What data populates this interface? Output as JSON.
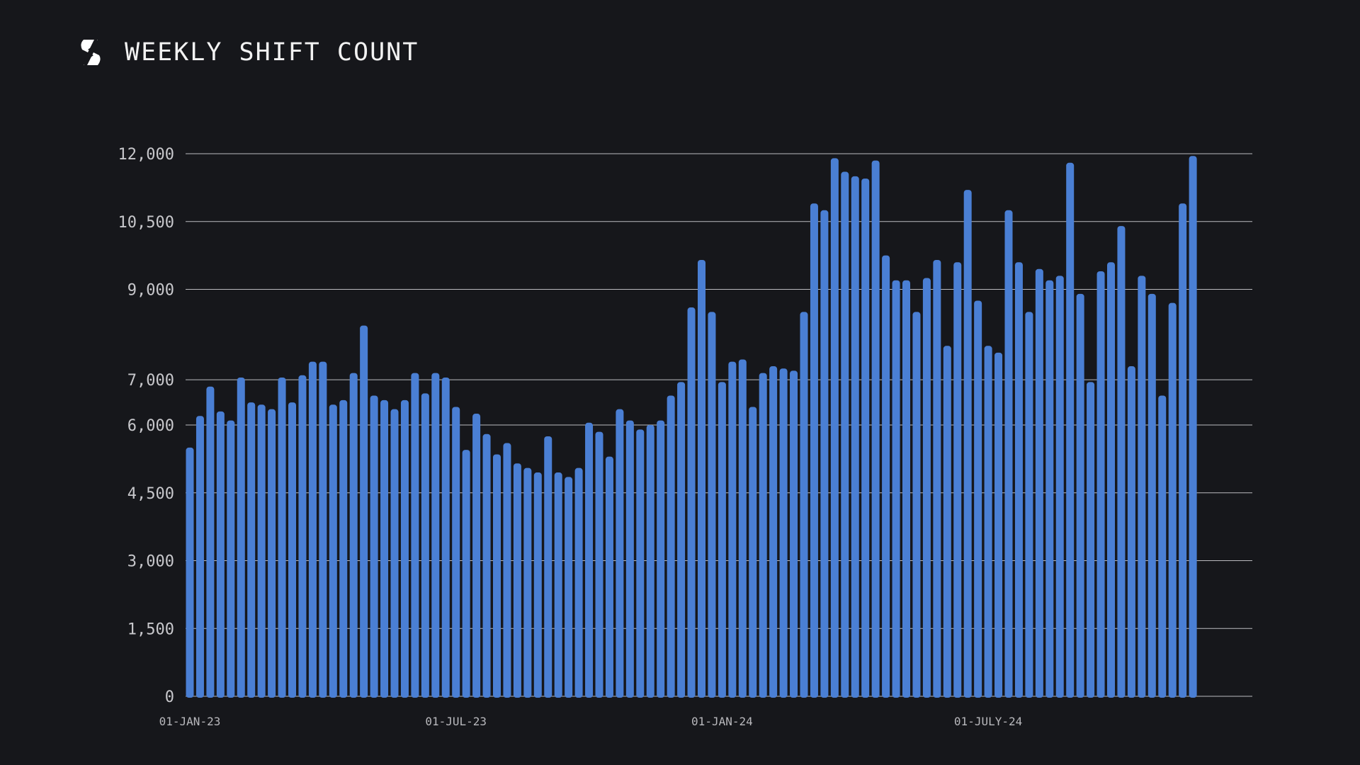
{
  "header": {
    "title": "WEEKLY SHIFT COUNT",
    "logo_icon": "brand-s-logo-icon"
  },
  "colors": {
    "background": "#16171b",
    "bar": "#4a7fd4",
    "grid": "#d8d8dc",
    "text": "#ffffff"
  },
  "chart_data": {
    "type": "bar",
    "title": "WEEKLY SHIFT COUNT",
    "xlabel": "",
    "ylabel": "",
    "ylim": [
      0,
      12000
    ],
    "grid": true,
    "legend": "none",
    "y_ticks": [
      {
        "value": 0,
        "label": "0"
      },
      {
        "value": 1500,
        "label": "1,500"
      },
      {
        "value": 3000,
        "label": "3,000"
      },
      {
        "value": 4500,
        "label": "4,500"
      },
      {
        "value": 6000,
        "label": "6,000"
      },
      {
        "value": 7000,
        "label": "7,000"
      },
      {
        "value": 9000,
        "label": "9,000"
      },
      {
        "value": 10500,
        "label": "10,500"
      },
      {
        "value": 12000,
        "label": "12,000"
      }
    ],
    "x_ticks": [
      {
        "index": 0,
        "label": "01-JAN-23"
      },
      {
        "index": 26,
        "label": "01-JUL-23"
      },
      {
        "index": 52,
        "label": "01-JAN-24"
      },
      {
        "index": 78,
        "label": "01-JULY-24"
      }
    ],
    "values": [
      5500,
      6200,
      6850,
      6300,
      6100,
      7050,
      6500,
      6450,
      6350,
      7050,
      6500,
      7100,
      7400,
      7400,
      6450,
      6550,
      7150,
      8200,
      6650,
      6550,
      6350,
      6550,
      7150,
      6700,
      7150,
      7050,
      6400,
      5450,
      6250,
      5800,
      5350,
      5600,
      5150,
      5050,
      4950,
      5750,
      4950,
      4850,
      5050,
      6050,
      5850,
      5300,
      6350,
      6100,
      5900,
      6000,
      6100,
      6650,
      6950,
      8600,
      9650,
      8500,
      6950,
      7400,
      7450,
      6400,
      7150,
      7300,
      7250,
      7200,
      8500,
      10900,
      10750,
      11900,
      11600,
      11500,
      11450,
      11850,
      9750,
      9200,
      9200,
      8500,
      9250,
      9650,
      7750,
      9600,
      11200,
      8750,
      7750,
      7600,
      10750,
      9600,
      8500,
      9450,
      9200,
      9300,
      11800,
      8900,
      6950,
      9400,
      9600,
      10400,
      7300,
      9300,
      8900,
      6650,
      8700,
      10900,
      11950
    ]
  }
}
